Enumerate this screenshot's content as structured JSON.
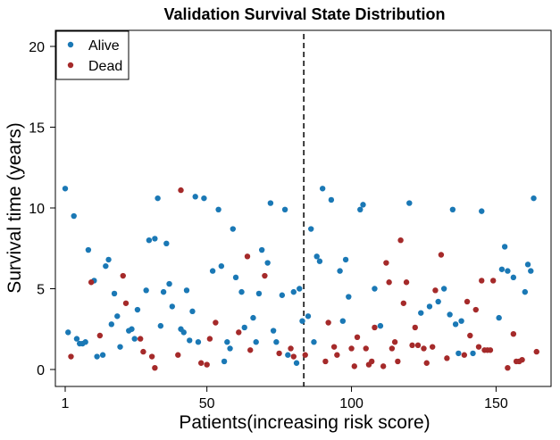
{
  "chart_data": {
    "type": "scatter",
    "title": "Validation Survival State Distribution",
    "xlabel": "Patients(increasing risk score)",
    "ylabel": "Survival time (years)",
    "xlim": [
      1,
      165
    ],
    "ylim": [
      0,
      21
    ],
    "xticks": [
      1,
      50,
      100,
      150
    ],
    "yticks": [
      0,
      5,
      10,
      15,
      20
    ],
    "cutoff_x": 83.5,
    "legend_position": "top-left",
    "series": [
      {
        "name": "Alive",
        "color": "#1a78b5",
        "points": [
          [
            1,
            11.2
          ],
          [
            2,
            2.3
          ],
          [
            4,
            9.5
          ],
          [
            5,
            1.9
          ],
          [
            6,
            1.6
          ],
          [
            7,
            1.6
          ],
          [
            8,
            1.7
          ],
          [
            9,
            7.4
          ],
          [
            11,
            5.5
          ],
          [
            12,
            0.8
          ],
          [
            14,
            0.9
          ],
          [
            15,
            6.4
          ],
          [
            16,
            6.8
          ],
          [
            17,
            2.8
          ],
          [
            18,
            4.7
          ],
          [
            19,
            3.3
          ],
          [
            20,
            1.4
          ],
          [
            23,
            2.4
          ],
          [
            24,
            2.5
          ],
          [
            25,
            1.9
          ],
          [
            26,
            3.7
          ],
          [
            29,
            4.9
          ],
          [
            30,
            8.0
          ],
          [
            32,
            8.1
          ],
          [
            33,
            10.6
          ],
          [
            34,
            2.7
          ],
          [
            35,
            4.8
          ],
          [
            36,
            7.8
          ],
          [
            37,
            5.3
          ],
          [
            38,
            3.9
          ],
          [
            41,
            2.5
          ],
          [
            42,
            2.3
          ],
          [
            43,
            4.9
          ],
          [
            44,
            1.8
          ],
          [
            45,
            3.6
          ],
          [
            46,
            10.7
          ],
          [
            47,
            1.7
          ],
          [
            49,
            10.6
          ],
          [
            52,
            6.1
          ],
          [
            54,
            9.9
          ],
          [
            55,
            6.4
          ],
          [
            56,
            0.5
          ],
          [
            57,
            1.7
          ],
          [
            58,
            1.3
          ],
          [
            59,
            8.7
          ],
          [
            60,
            5.7
          ],
          [
            62,
            4.8
          ],
          [
            63,
            2.6
          ],
          [
            66,
            3.2
          ],
          [
            67,
            1.7
          ],
          [
            68,
            4.7
          ],
          [
            69,
            7.4
          ],
          [
            71,
            6.6
          ],
          [
            72,
            10.3
          ],
          [
            73,
            2.4
          ],
          [
            74,
            1.7
          ],
          [
            76,
            4.6
          ],
          [
            77,
            9.9
          ],
          [
            78,
            0.9
          ],
          [
            80,
            4.8
          ],
          [
            81,
            0.4
          ],
          [
            82,
            5.0
          ],
          [
            83,
            3.0
          ],
          [
            85,
            3.3
          ],
          [
            86,
            8.7
          ],
          [
            87,
            1.7
          ],
          [
            88,
            7.0
          ],
          [
            89,
            6.7
          ],
          [
            90,
            11.2
          ],
          [
            93,
            10.5
          ],
          [
            96,
            6.1
          ],
          [
            97,
            3.0
          ],
          [
            98,
            6.8
          ],
          [
            99,
            4.5
          ],
          [
            103,
            9.9
          ],
          [
            104,
            10.2
          ],
          [
            108,
            5.0
          ],
          [
            110,
            2.7
          ],
          [
            120,
            10.3
          ],
          [
            124,
            3.5
          ],
          [
            127,
            3.9
          ],
          [
            130,
            4.2
          ],
          [
            132,
            5.0
          ],
          [
            134,
            3.4
          ],
          [
            135,
            9.9
          ],
          [
            136,
            2.8
          ],
          [
            137,
            1.0
          ],
          [
            138,
            3.0
          ],
          [
            142,
            1.0
          ],
          [
            145,
            9.8
          ],
          [
            151,
            3.2
          ],
          [
            152,
            6.2
          ],
          [
            153,
            7.6
          ],
          [
            154,
            6.1
          ],
          [
            156,
            5.7
          ],
          [
            160,
            4.8
          ],
          [
            161,
            6.5
          ],
          [
            162,
            6.1
          ],
          [
            163,
            10.6
          ]
        ]
      },
      {
        "name": "Dead",
        "color": "#a52a2a",
        "points": [
          [
            3,
            0.8
          ],
          [
            10,
            5.4
          ],
          [
            13,
            2.1
          ],
          [
            21,
            5.8
          ],
          [
            22,
            4.1
          ],
          [
            27,
            1.9
          ],
          [
            28,
            1.1
          ],
          [
            31,
            0.8
          ],
          [
            32,
            0.1
          ],
          [
            40,
            0.9
          ],
          [
            41,
            11.1
          ],
          [
            48,
            0.4
          ],
          [
            50,
            0.3
          ],
          [
            51,
            1.9
          ],
          [
            53,
            2.9
          ],
          [
            61,
            2.3
          ],
          [
            64,
            7.0
          ],
          [
            65,
            1.2
          ],
          [
            70,
            5.8
          ],
          [
            75,
            1.0
          ],
          [
            79,
            1.3
          ],
          [
            80,
            0.8
          ],
          [
            84,
            0.9
          ],
          [
            91,
            0.5
          ],
          [
            92,
            2.9
          ],
          [
            94,
            1.4
          ],
          [
            95,
            0.9
          ],
          [
            100,
            1.3
          ],
          [
            101,
            0.2
          ],
          [
            102,
            2.0
          ],
          [
            105,
            1.3
          ],
          [
            106,
            0.3
          ],
          [
            107,
            0.5
          ],
          [
            108,
            2.6
          ],
          [
            111,
            0.2
          ],
          [
            112,
            6.6
          ],
          [
            113,
            5.4
          ],
          [
            114,
            1.3
          ],
          [
            115,
            1.7
          ],
          [
            116,
            0.5
          ],
          [
            117,
            8.0
          ],
          [
            118,
            4.1
          ],
          [
            119,
            5.4
          ],
          [
            121,
            1.5
          ],
          [
            122,
            2.6
          ],
          [
            123,
            1.5
          ],
          [
            125,
            1.3
          ],
          [
            126,
            0.4
          ],
          [
            128,
            1.4
          ],
          [
            129,
            4.9
          ],
          [
            131,
            7.1
          ],
          [
            133,
            0.7
          ],
          [
            139,
            0.9
          ],
          [
            140,
            4.2
          ],
          [
            141,
            2.1
          ],
          [
            143,
            3.7
          ],
          [
            144,
            1.4
          ],
          [
            145,
            5.5
          ],
          [
            146,
            1.2
          ],
          [
            147,
            1.2
          ],
          [
            148,
            1.2
          ],
          [
            149,
            5.5
          ],
          [
            154,
            0.1
          ],
          [
            156,
            2.2
          ],
          [
            157,
            0.5
          ],
          [
            158,
            0.5
          ],
          [
            159,
            0.6
          ],
          [
            164,
            1.1
          ]
        ]
      }
    ]
  }
}
